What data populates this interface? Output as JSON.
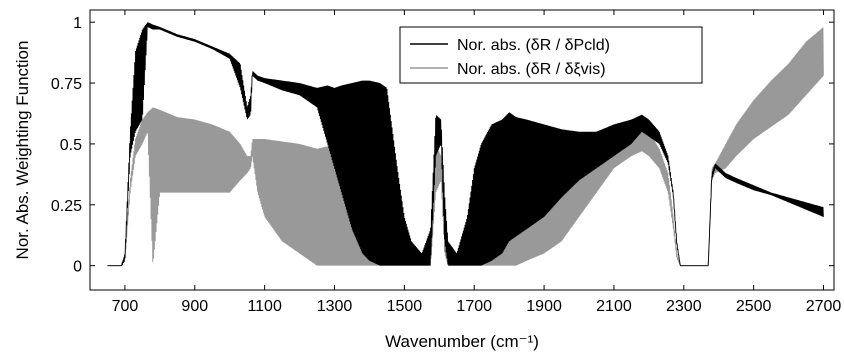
{
  "chart_data": {
    "type": "line",
    "xlabel": "Wavenumber (cm⁻¹)",
    "ylabel": "Nor. Abs. Weighting Function",
    "xlim": [
      600,
      2730
    ],
    "ylim": [
      -0.1,
      1.05
    ],
    "xticks": [
      700,
      900,
      1100,
      1300,
      1500,
      1700,
      1900,
      2100,
      2300,
      2500,
      2700
    ],
    "yticks": [
      0,
      0.25,
      0.5,
      0.75,
      1
    ],
    "ytick_labels": [
      "0",
      "0.25",
      "0.5",
      "0.75",
      "1"
    ],
    "legend_position": "top-right",
    "grid": false,
    "series": [
      {
        "name": "Nor. abs. (δR / δPcld)",
        "color": "#000000",
        "upper": [
          [
            650,
            0
          ],
          [
            690,
            0
          ],
          [
            700,
            0.05
          ],
          [
            715,
            0.55
          ],
          [
            730,
            0.88
          ],
          [
            750,
            0.97
          ],
          [
            765,
            1.0
          ],
          [
            780,
            0.99
          ],
          [
            800,
            0.98
          ],
          [
            850,
            0.95
          ],
          [
            900,
            0.93
          ],
          [
            950,
            0.9
          ],
          [
            1000,
            0.87
          ],
          [
            1030,
            0.83
          ],
          [
            1050,
            0.65
          ],
          [
            1060,
            0.7
          ],
          [
            1065,
            0.8
          ],
          [
            1080,
            0.78
          ],
          [
            1100,
            0.77
          ],
          [
            1150,
            0.76
          ],
          [
            1200,
            0.75
          ],
          [
            1250,
            0.73
          ],
          [
            1280,
            0.74
          ],
          [
            1300,
            0.73
          ],
          [
            1320,
            0.74
          ],
          [
            1350,
            0.75
          ],
          [
            1380,
            0.76
          ],
          [
            1400,
            0.76
          ],
          [
            1430,
            0.75
          ],
          [
            1450,
            0.73
          ],
          [
            1480,
            0.4
          ],
          [
            1500,
            0.2
          ],
          [
            1520,
            0.1
          ],
          [
            1550,
            0.05
          ],
          [
            1575,
            0.15
          ],
          [
            1590,
            0.62
          ],
          [
            1605,
            0.6
          ],
          [
            1615,
            0.3
          ],
          [
            1625,
            0.1
          ],
          [
            1650,
            0.05
          ],
          [
            1680,
            0.2
          ],
          [
            1700,
            0.4
          ],
          [
            1720,
            0.5
          ],
          [
            1750,
            0.58
          ],
          [
            1780,
            0.6
          ],
          [
            1800,
            0.63
          ],
          [
            1820,
            0.61
          ],
          [
            1850,
            0.6
          ],
          [
            1900,
            0.58
          ],
          [
            1950,
            0.56
          ],
          [
            2000,
            0.55
          ],
          [
            2050,
            0.55
          ],
          [
            2100,
            0.58
          ],
          [
            2150,
            0.6
          ],
          [
            2180,
            0.62
          ],
          [
            2200,
            0.6
          ],
          [
            2230,
            0.55
          ],
          [
            2255,
            0.45
          ],
          [
            2270,
            0.3
          ],
          [
            2280,
            0.1
          ],
          [
            2290,
            0
          ],
          [
            2370,
            0
          ],
          [
            2380,
            0.38
          ],
          [
            2390,
            0.42
          ],
          [
            2420,
            0.38
          ],
          [
            2450,
            0.36
          ],
          [
            2500,
            0.33
          ],
          [
            2550,
            0.3
          ],
          [
            2600,
            0.28
          ],
          [
            2650,
            0.26
          ],
          [
            2700,
            0.24
          ]
        ],
        "lower": [
          [
            650,
            0
          ],
          [
            690,
            0
          ],
          [
            700,
            0.02
          ],
          [
            715,
            0.45
          ],
          [
            730,
            0.55
          ],
          [
            750,
            0.6
          ],
          [
            765,
            0.98
          ],
          [
            780,
            0.97
          ],
          [
            800,
            0.97
          ],
          [
            850,
            0.94
          ],
          [
            900,
            0.92
          ],
          [
            950,
            0.89
          ],
          [
            1000,
            0.85
          ],
          [
            1030,
            0.73
          ],
          [
            1050,
            0.6
          ],
          [
            1060,
            0.62
          ],
          [
            1065,
            0.78
          ],
          [
            1080,
            0.76
          ],
          [
            1100,
            0.75
          ],
          [
            1150,
            0.72
          ],
          [
            1200,
            0.7
          ],
          [
            1250,
            0.65
          ],
          [
            1280,
            0.5
          ],
          [
            1300,
            0.4
          ],
          [
            1320,
            0.3
          ],
          [
            1350,
            0.15
          ],
          [
            1380,
            0.05
          ],
          [
            1400,
            0.02
          ],
          [
            1430,
            0
          ],
          [
            1450,
            0
          ],
          [
            1480,
            0
          ],
          [
            1500,
            0
          ],
          [
            1520,
            0
          ],
          [
            1550,
            0
          ],
          [
            1575,
            0
          ],
          [
            1590,
            0.45
          ],
          [
            1605,
            0.5
          ],
          [
            1615,
            0.1
          ],
          [
            1625,
            0
          ],
          [
            1650,
            0
          ],
          [
            1680,
            0
          ],
          [
            1700,
            0
          ],
          [
            1720,
            0
          ],
          [
            1750,
            0.02
          ],
          [
            1780,
            0.05
          ],
          [
            1800,
            0.1
          ],
          [
            1820,
            0.12
          ],
          [
            1850,
            0.15
          ],
          [
            1900,
            0.2
          ],
          [
            1950,
            0.28
          ],
          [
            2000,
            0.35
          ],
          [
            2050,
            0.4
          ],
          [
            2100,
            0.45
          ],
          [
            2150,
            0.5
          ],
          [
            2180,
            0.55
          ],
          [
            2200,
            0.53
          ],
          [
            2230,
            0.5
          ],
          [
            2255,
            0.42
          ],
          [
            2270,
            0.28
          ],
          [
            2280,
            0.08
          ],
          [
            2290,
            0
          ],
          [
            2370,
            0
          ],
          [
            2380,
            0.35
          ],
          [
            2390,
            0.4
          ],
          [
            2420,
            0.36
          ],
          [
            2450,
            0.34
          ],
          [
            2500,
            0.31
          ],
          [
            2550,
            0.29
          ],
          [
            2600,
            0.26
          ],
          [
            2650,
            0.23
          ],
          [
            2700,
            0.2
          ]
        ]
      },
      {
        "name": "Nor. abs. (δR / δξvis)",
        "color": "#999999",
        "upper": [
          [
            650,
            0
          ],
          [
            690,
            0
          ],
          [
            700,
            0.04
          ],
          [
            715,
            0.35
          ],
          [
            730,
            0.52
          ],
          [
            750,
            0.6
          ],
          [
            765,
            0.63
          ],
          [
            780,
            0.65
          ],
          [
            800,
            0.64
          ],
          [
            850,
            0.61
          ],
          [
            900,
            0.6
          ],
          [
            950,
            0.58
          ],
          [
            1000,
            0.55
          ],
          [
            1030,
            0.5
          ],
          [
            1050,
            0.45
          ],
          [
            1060,
            0.45
          ],
          [
            1065,
            0.52
          ],
          [
            1080,
            0.52
          ],
          [
            1100,
            0.52
          ],
          [
            1150,
            0.51
          ],
          [
            1200,
            0.5
          ],
          [
            1250,
            0.48
          ],
          [
            1280,
            0.49
          ],
          [
            1300,
            0.48
          ],
          [
            1320,
            0.47
          ],
          [
            1350,
            0.45
          ],
          [
            1380,
            0.42
          ],
          [
            1400,
            0.4
          ],
          [
            1430,
            0.35
          ],
          [
            1450,
            0.3
          ],
          [
            1480,
            0.22
          ],
          [
            1500,
            0.15
          ],
          [
            1520,
            0.08
          ],
          [
            1550,
            0.05
          ],
          [
            1575,
            0.1
          ],
          [
            1590,
            0.5
          ],
          [
            1605,
            0.45
          ],
          [
            1615,
            0.25
          ],
          [
            1625,
            0.08
          ],
          [
            1650,
            0.05
          ],
          [
            1680,
            0.15
          ],
          [
            1700,
            0.35
          ],
          [
            1720,
            0.42
          ],
          [
            1750,
            0.48
          ],
          [
            1780,
            0.5
          ],
          [
            1800,
            0.52
          ],
          [
            1820,
            0.51
          ],
          [
            1850,
            0.5
          ],
          [
            1900,
            0.5
          ],
          [
            1950,
            0.5
          ],
          [
            2000,
            0.5
          ],
          [
            2050,
            0.52
          ],
          [
            2100,
            0.55
          ],
          [
            2150,
            0.57
          ],
          [
            2180,
            0.58
          ],
          [
            2200,
            0.55
          ],
          [
            2230,
            0.48
          ],
          [
            2255,
            0.38
          ],
          [
            2270,
            0.2
          ],
          [
            2280,
            0.05
          ],
          [
            2290,
            0
          ],
          [
            2370,
            0
          ],
          [
            2380,
            0.4
          ],
          [
            2390,
            0.42
          ],
          [
            2420,
            0.5
          ],
          [
            2450,
            0.58
          ],
          [
            2500,
            0.68
          ],
          [
            2550,
            0.76
          ],
          [
            2600,
            0.83
          ],
          [
            2650,
            0.92
          ],
          [
            2700,
            0.98
          ]
        ],
        "lower": [
          [
            650,
            0
          ],
          [
            690,
            0
          ],
          [
            700,
            0.02
          ],
          [
            715,
            0.3
          ],
          [
            730,
            0.45
          ],
          [
            750,
            0.5
          ],
          [
            765,
            0.55
          ],
          [
            780,
            0.0
          ],
          [
            800,
            0.3
          ],
          [
            850,
            0.3
          ],
          [
            900,
            0.3
          ],
          [
            950,
            0.3
          ],
          [
            1000,
            0.3
          ],
          [
            1030,
            0.35
          ],
          [
            1050,
            0.38
          ],
          [
            1060,
            0.4
          ],
          [
            1065,
            0.45
          ],
          [
            1080,
            0.3
          ],
          [
            1100,
            0.2
          ],
          [
            1150,
            0.1
          ],
          [
            1200,
            0.05
          ],
          [
            1250,
            0
          ],
          [
            1280,
            0
          ],
          [
            1300,
            0
          ],
          [
            1320,
            0
          ],
          [
            1350,
            0
          ],
          [
            1380,
            0
          ],
          [
            1400,
            0
          ],
          [
            1430,
            0
          ],
          [
            1450,
            0
          ],
          [
            1480,
            0
          ],
          [
            1500,
            0
          ],
          [
            1520,
            0
          ],
          [
            1550,
            0
          ],
          [
            1575,
            0
          ],
          [
            1590,
            0.3
          ],
          [
            1605,
            0.35
          ],
          [
            1615,
            0.05
          ],
          [
            1625,
            0
          ],
          [
            1650,
            0
          ],
          [
            1680,
            0
          ],
          [
            1700,
            0
          ],
          [
            1720,
            0
          ],
          [
            1750,
            0
          ],
          [
            1780,
            0
          ],
          [
            1800,
            0
          ],
          [
            1820,
            0
          ],
          [
            1850,
            0.02
          ],
          [
            1900,
            0.05
          ],
          [
            1950,
            0.1
          ],
          [
            2000,
            0.2
          ],
          [
            2050,
            0.3
          ],
          [
            2100,
            0.4
          ],
          [
            2150,
            0.45
          ],
          [
            2180,
            0.47
          ],
          [
            2200,
            0.45
          ],
          [
            2230,
            0.4
          ],
          [
            2255,
            0.3
          ],
          [
            2270,
            0.15
          ],
          [
            2280,
            0.03
          ],
          [
            2290,
            0
          ],
          [
            2370,
            0
          ],
          [
            2380,
            0.35
          ],
          [
            2390,
            0.38
          ],
          [
            2420,
            0.4
          ],
          [
            2450,
            0.45
          ],
          [
            2500,
            0.52
          ],
          [
            2550,
            0.57
          ],
          [
            2600,
            0.62
          ],
          [
            2650,
            0.7
          ],
          [
            2700,
            0.78
          ]
        ]
      }
    ]
  }
}
